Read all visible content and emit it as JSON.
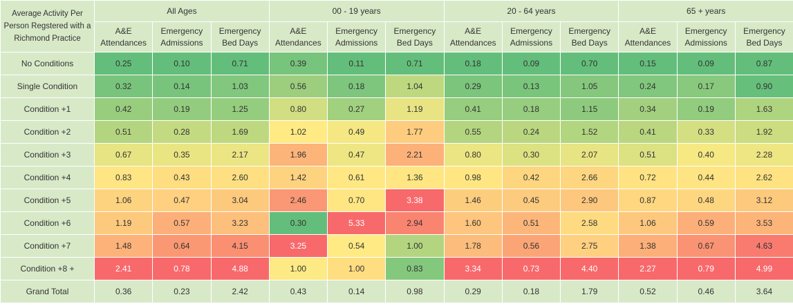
{
  "chart_data": {
    "type": "heatmap",
    "title": "Average Activity Per Person Regstered with a Richmond Practice",
    "groups": [
      "All Ages",
      "00 - 19 years",
      "20 - 64 years",
      "65 + years"
    ],
    "metrics": [
      "A&E Attendances",
      "Emergency Admissions",
      "Emergency Bed Days"
    ],
    "rows": [
      "No Conditions",
      "Single Condition",
      "Condition +1",
      "Condition +2",
      "Condition +3",
      "Condition +4",
      "Condition +5",
      "Condition +6",
      "Condition +7",
      "Condition +8 +"
    ],
    "values": [
      [
        0.25,
        0.1,
        0.71,
        0.39,
        0.11,
        0.71,
        0.18,
        0.09,
        0.7,
        0.15,
        0.09,
        0.87
      ],
      [
        0.32,
        0.14,
        1.03,
        0.56,
        0.18,
        1.04,
        0.29,
        0.13,
        1.05,
        0.24,
        0.17,
        0.9
      ],
      [
        0.42,
        0.19,
        1.25,
        0.8,
        0.27,
        1.19,
        0.41,
        0.18,
        1.15,
        0.34,
        0.19,
        1.63
      ],
      [
        0.51,
        0.28,
        1.69,
        1.02,
        0.49,
        1.77,
        0.55,
        0.24,
        1.52,
        0.41,
        0.33,
        1.92
      ],
      [
        0.67,
        0.35,
        2.17,
        1.96,
        0.47,
        2.21,
        0.8,
        0.3,
        2.07,
        0.51,
        0.4,
        2.28
      ],
      [
        0.83,
        0.43,
        2.6,
        1.42,
        0.61,
        1.36,
        0.98,
        0.42,
        2.66,
        0.72,
        0.44,
        2.62
      ],
      [
        1.06,
        0.47,
        3.04,
        2.46,
        0.7,
        3.38,
        1.46,
        0.45,
        2.9,
        0.87,
        0.48,
        3.12
      ],
      [
        1.19,
        0.57,
        3.23,
        0.3,
        5.33,
        2.94,
        1.6,
        0.51,
        2.58,
        1.06,
        0.59,
        3.53
      ],
      [
        1.48,
        0.64,
        4.15,
        3.25,
        0.54,
        1.0,
        1.78,
        0.56,
        2.75,
        1.38,
        0.67,
        4.63
      ],
      [
        2.41,
        0.78,
        4.88,
        1.0,
        1.0,
        0.83,
        3.34,
        0.73,
        4.4,
        2.27,
        0.79,
        4.99
      ]
    ],
    "grand_total_label": "Grand Total",
    "grand_total": [
      0.36,
      0.23,
      2.42,
      0.43,
      0.14,
      0.98,
      0.29,
      0.18,
      1.79,
      0.52,
      0.46,
      3.64
    ],
    "colors": {
      "low": "#63be7b",
      "mid": "#ffeb84",
      "high": "#f8696b",
      "header_bg": "#d8e9c8"
    }
  }
}
